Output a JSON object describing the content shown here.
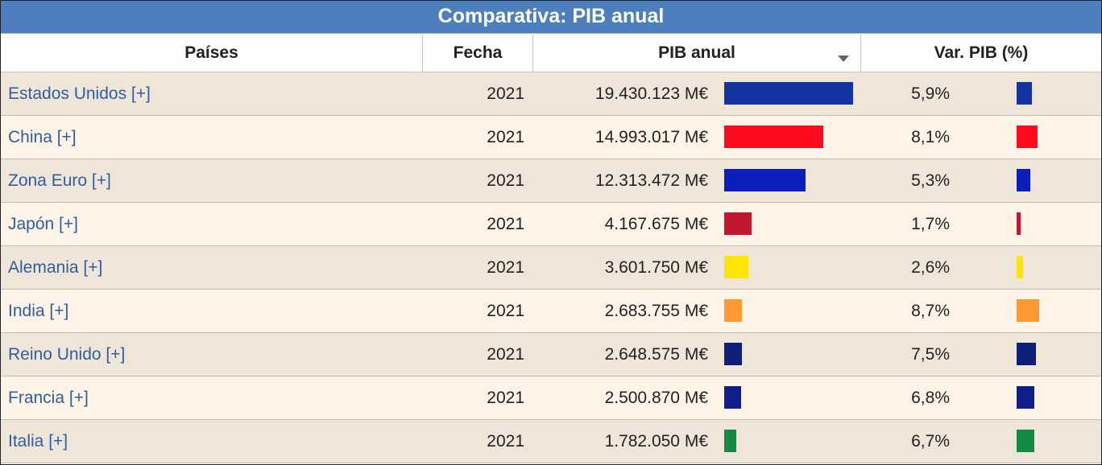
{
  "title": "Comparativa: PIB anual",
  "columns": {
    "country": "Países",
    "date": "Fecha",
    "gdp": "PIB anual",
    "var": "Var. PIB (%)"
  },
  "rows": [
    {
      "country": "Estados Unidos [+]",
      "year": "2021",
      "gdp": "19.430.123 M€",
      "gdp_value": 19430123,
      "var": "5,9%",
      "var_value": 5.9,
      "color": "#1434a4"
    },
    {
      "country": "China [+]",
      "year": "2021",
      "gdp": "14.993.017 M€",
      "gdp_value": 14993017,
      "var": "8,1%",
      "var_value": 8.1,
      "color": "#ff0a1e"
    },
    {
      "country": "Zona Euro [+]",
      "year": "2021",
      "gdp": "12.313.472 M€",
      "gdp_value": 12313472,
      "var": "5,3%",
      "var_value": 5.3,
      "color": "#0a1fb9"
    },
    {
      "country": "Japón [+]",
      "year": "2021",
      "gdp": "4.167.675 M€",
      "gdp_value": 4167675,
      "var": "1,7%",
      "var_value": 1.7,
      "color": "#c0182e"
    },
    {
      "country": "Alemania [+]",
      "year": "2021",
      "gdp": "3.601.750 M€",
      "gdp_value": 3601750,
      "var": "2,6%",
      "var_value": 2.6,
      "color": "#ffe40a"
    },
    {
      "country": "India [+]",
      "year": "2021",
      "gdp": "2.683.755 M€",
      "gdp_value": 2683755,
      "var": "8,7%",
      "var_value": 8.7,
      "color": "#ff9933"
    },
    {
      "country": "Reino Unido [+]",
      "year": "2021",
      "gdp": "2.648.575 M€",
      "gdp_value": 2648575,
      "var": "7,5%",
      "var_value": 7.5,
      "color": "#0e1f7a"
    },
    {
      "country": "Francia [+]",
      "year": "2021",
      "gdp": "2.500.870 M€",
      "gdp_value": 2500870,
      "var": "6,8%",
      "var_value": 6.8,
      "color": "#0f1f8e"
    },
    {
      "country": "Italia [+]",
      "year": "2021",
      "gdp": "1.782.050 M€",
      "gdp_value": 1782050,
      "var": "6,7%",
      "var_value": 6.7,
      "color": "#138b45"
    }
  ],
  "colors": {
    "header_bg": "#4d7fbf",
    "row_alt_a": "#efe5d8",
    "row_alt_b": "#fdf3e7",
    "link": "#2f5ea3"
  }
}
